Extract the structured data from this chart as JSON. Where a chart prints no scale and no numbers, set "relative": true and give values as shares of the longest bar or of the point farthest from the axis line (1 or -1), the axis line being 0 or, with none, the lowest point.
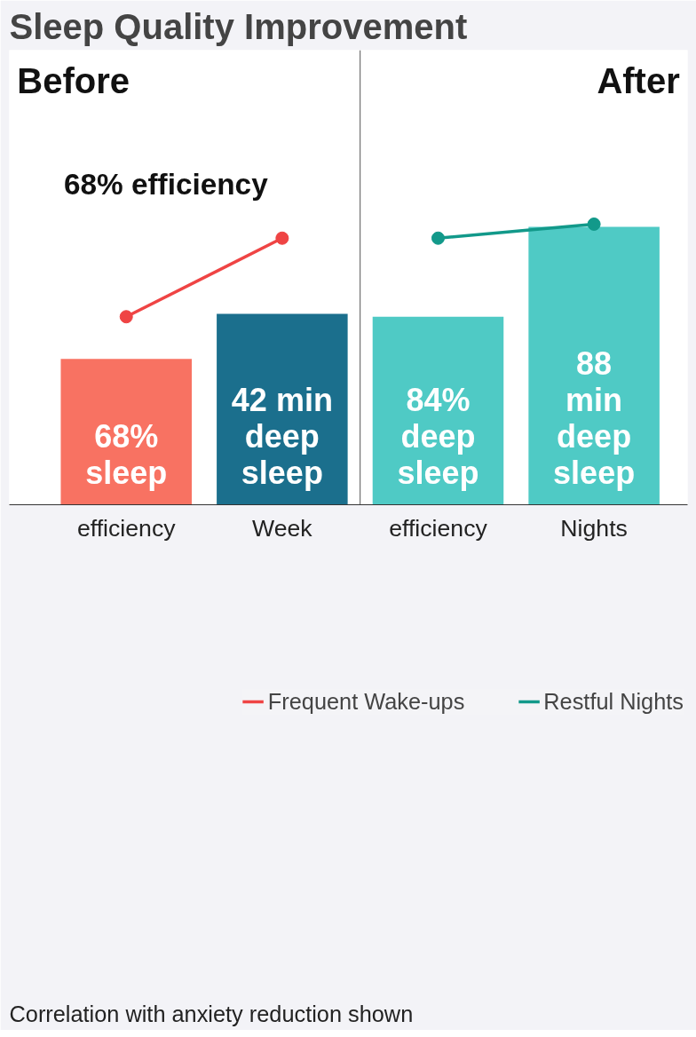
{
  "chart_data": {
    "type": "bar",
    "title": "Sleep Quality Improvement",
    "relative": true,
    "categories": [
      "efficiency",
      "Week",
      "efficiency",
      "Nights"
    ],
    "values": [
      0.52,
      0.68,
      0.67,
      0.99
    ],
    "colors": [
      "#f87262",
      "#1b6f8d",
      "#4fcac5",
      "#4fcac5"
    ],
    "series": [
      {
        "name": "Frequent Wake-ups",
        "type": "line",
        "color": "#ef4444",
        "values": [
          0.67,
          0.95,
          null,
          null
        ]
      },
      {
        "name": "Restful Nights",
        "type": "line",
        "color": "#12998a",
        "values": [
          null,
          null,
          0.95,
          1.0
        ]
      }
    ],
    "annotations": [
      "68%\nsleep",
      "42 min\ndeep\nsleep",
      "84%\ndeep\nsleep",
      "88\nmin\ndeep\nsleep",
      "Before",
      "After",
      "68% efficiency",
      "Correlation with anxiety reduction shown"
    ],
    "marker": "circle",
    "line_style": "solid",
    "legend": "bottom",
    "grid": false,
    "tick_labels": "x"
  }
}
